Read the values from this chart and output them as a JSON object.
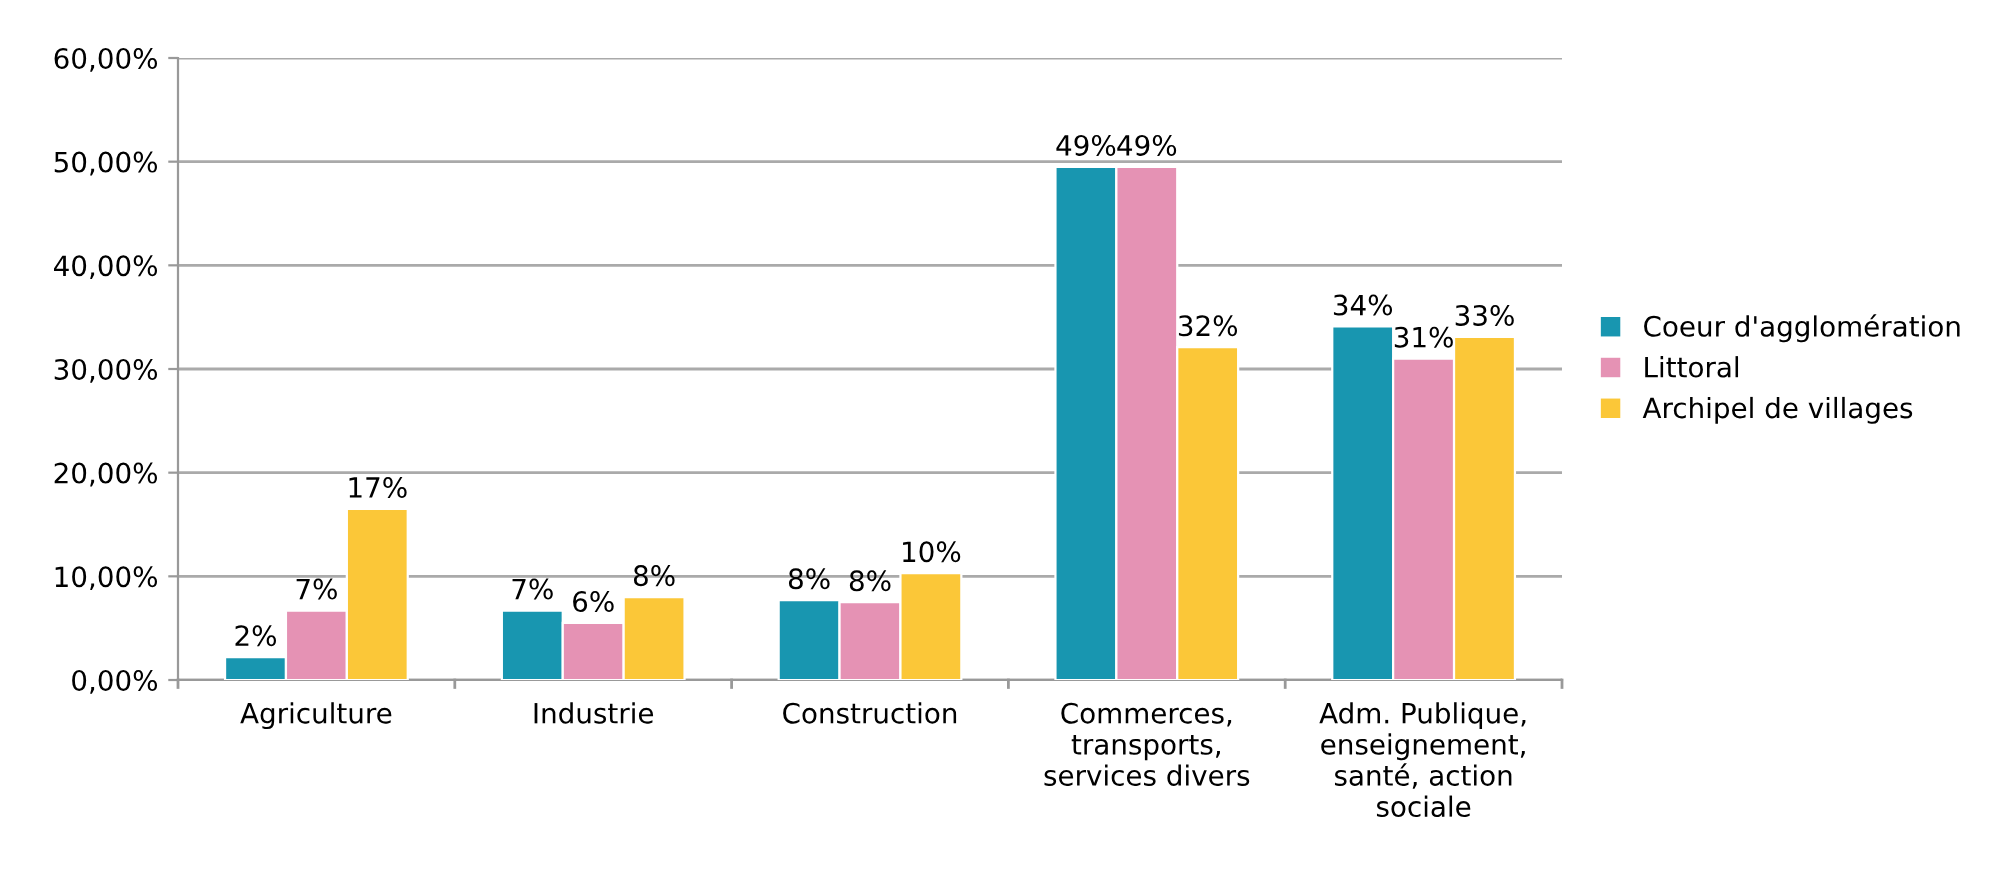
{
  "chart_data": {
    "type": "bar",
    "categories": [
      "Agriculture",
      "Industrie",
      "Construction",
      "Commerces,\ntransports,\nservices divers",
      "Adm. Publique,\nenseignement,\nsanté, action\nsociale"
    ],
    "series": [
      {
        "name": "Coeur d'agglomération",
        "color": "#1896b0",
        "values": [
          2.2,
          6.7,
          7.7,
          49.5,
          34.1
        ],
        "value_labels": [
          "2%",
          "7%",
          "8%",
          "49%",
          "34%"
        ]
      },
      {
        "name": "Littoral",
        "color": "#e592b4",
        "values": [
          6.7,
          5.5,
          7.5,
          49.5,
          31.0
        ],
        "value_labels": [
          "7%",
          "6%",
          "8%",
          "49%",
          "31%"
        ]
      },
      {
        "name": "Archipel de villages",
        "color": "#fbc738",
        "values": [
          16.5,
          8.0,
          10.3,
          32.1,
          33.1
        ],
        "value_labels": [
          "17%",
          "8%",
          "10%",
          "32%",
          "33%"
        ]
      }
    ],
    "ylim": [
      0,
      60
    ],
    "yticks": [
      {
        "value": 0,
        "label": "0,00%"
      },
      {
        "value": 10,
        "label": "10,00%"
      },
      {
        "value": 20,
        "label": "20,00%"
      },
      {
        "value": 30,
        "label": "30,00%"
      },
      {
        "value": 40,
        "label": "40,00%"
      },
      {
        "value": 50,
        "label": "50,00%"
      },
      {
        "value": 60,
        "label": "60,00%"
      }
    ],
    "grid": "y",
    "legend": "right"
  }
}
